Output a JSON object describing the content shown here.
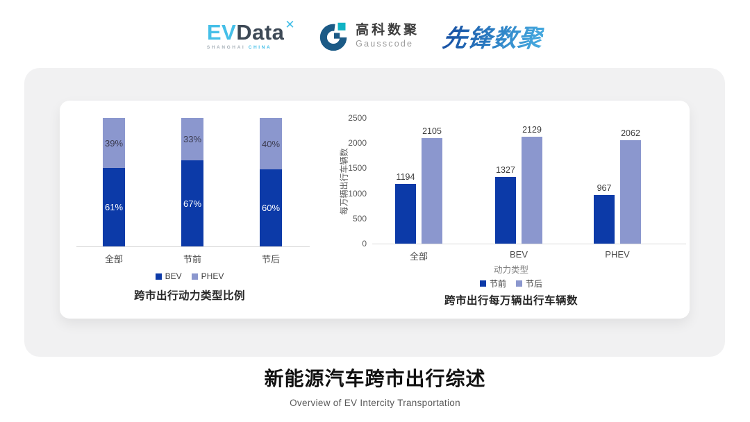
{
  "header": {
    "evdata": {
      "ev": "EV",
      "data": "Data",
      "mark": "✕",
      "sub_left": "SHANGHAI",
      "sub_right": "CHINA"
    },
    "gausscode": {
      "cn": "高科数聚",
      "en": "Gausscode"
    },
    "pioneer": "先锋数聚"
  },
  "chart_data": [
    {
      "type": "bar",
      "variant": "stacked-100-percent",
      "title": "跨市出行动力类型比例",
      "categories": [
        "全部",
        "节前",
        "节后"
      ],
      "series": [
        {
          "name": "BEV",
          "values": [
            61,
            67,
            60
          ],
          "color": "#0c3aa8"
        },
        {
          "name": "PHEV",
          "values": [
            39,
            33,
            40
          ],
          "color": "#8b97ce"
        }
      ],
      "value_suffix": "%",
      "legend_position": "bottom",
      "grid": false
    },
    {
      "type": "bar",
      "variant": "grouped",
      "title": "跨市出行每万辆出行车辆数",
      "categories": [
        "全部",
        "BEV",
        "PHEV"
      ],
      "series": [
        {
          "name": "节前",
          "values": [
            1194,
            1327,
            967
          ],
          "color": "#0c3aa8"
        },
        {
          "name": "节后",
          "values": [
            2105,
            2129,
            2062
          ],
          "color": "#8b97ce"
        }
      ],
      "xlabel": "动力类型",
      "ylabel": "每万辆出行车辆数",
      "ylim": [
        0,
        2500
      ],
      "yticks": [
        0,
        500,
        1000,
        1500,
        2000,
        2500
      ],
      "legend_position": "bottom",
      "grid": false
    }
  ],
  "footer": {
    "title": "新能源汽车跨市出行综述",
    "subtitle": "Overview of EV Intercity Transportation"
  },
  "colors": {
    "bev_dark_blue": "#0c3aa8",
    "phev_light_blue": "#8b97ce",
    "accent_cyan": "#45bfe8",
    "logo_slate": "#3d4956",
    "gauss_blue": "#1b5a86",
    "gauss_teal": "#10b3c4",
    "card_gray": "#f1f1f2"
  }
}
